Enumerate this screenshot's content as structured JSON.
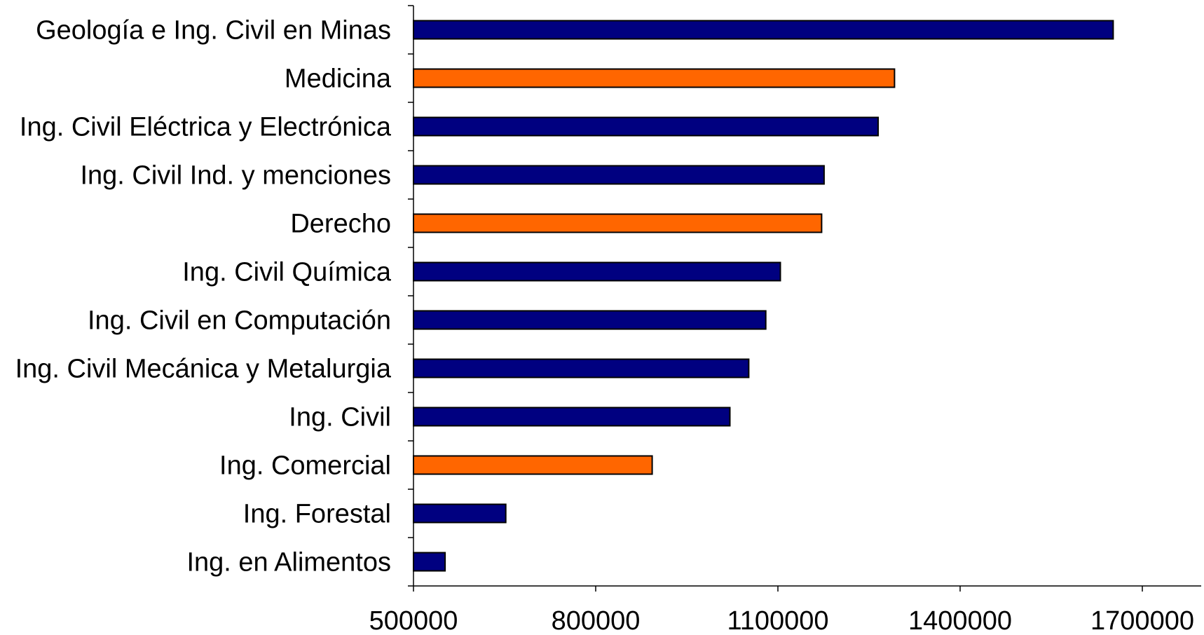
{
  "chart_data": {
    "type": "bar",
    "orientation": "horizontal",
    "title": "",
    "xlabel": "",
    "ylabel": "",
    "xlim": [
      500000,
      1800000
    ],
    "x_ticks": [
      500000,
      800000,
      1100000,
      1400000,
      1700000
    ],
    "x_tick_labels": [
      "500000",
      "800000",
      "1100000",
      "1400000",
      "1700000"
    ],
    "grid": false,
    "legend": "none",
    "colors": {
      "default": "#000080",
      "highlight": "#FF6600",
      "outline": "#000000"
    },
    "bars": [
      {
        "category": "Geología e Ing. Civil en Minas",
        "value": 1652000,
        "highlight": false
      },
      {
        "category": "Medicina",
        "value": 1292000,
        "highlight": true
      },
      {
        "category": "Ing. Civil Eléctrica y Electrónica",
        "value": 1265000,
        "highlight": false
      },
      {
        "category": "Ing. Civil Ind. y menciones",
        "value": 1176000,
        "highlight": false
      },
      {
        "category": "Derecho",
        "value": 1172000,
        "highlight": true
      },
      {
        "category": "Ing. Civil Química",
        "value": 1104000,
        "highlight": false
      },
      {
        "category": "Ing. Civil en Computación",
        "value": 1080000,
        "highlight": false
      },
      {
        "category": "Ing. Civil Mecánica y Metalurgia",
        "value": 1052000,
        "highlight": false
      },
      {
        "category": "Ing. Civil",
        "value": 1021000,
        "highlight": false
      },
      {
        "category": "Ing. Comercial",
        "value": 893000,
        "highlight": true
      },
      {
        "category": "Ing. Forestal",
        "value": 652000,
        "highlight": false
      },
      {
        "category": "Ing. en Alimentos",
        "value": 552000,
        "highlight": false
      }
    ]
  }
}
